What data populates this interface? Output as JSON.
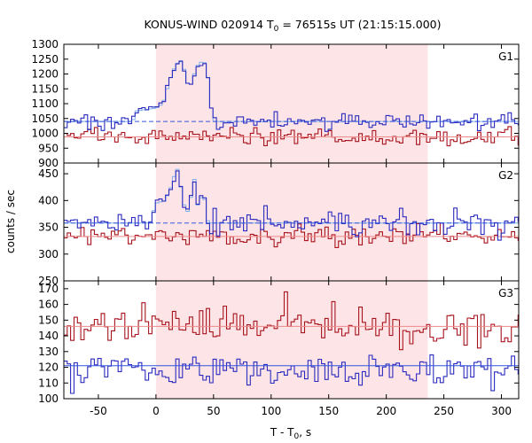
{
  "chart_data": {
    "type": "line",
    "title_main": "KONUS-WIND 020914 T",
    "title_sub": "0",
    "title_rest": " = 76515s UT (21:15:15.000)",
    "xlabel_main": "T - T",
    "xlabel_sub": "0",
    "xlabel_rest": ", s",
    "ylabel": "counts / sec",
    "xlim": [
      -80,
      315
    ],
    "xticks": [
      -50,
      0,
      50,
      100,
      150,
      200,
      250,
      300
    ],
    "highlight_interval": [
      0,
      236
    ],
    "colors": {
      "highlight": "#fde4e6",
      "blue_series": "#2b2bbf",
      "red_series": "#a8141e",
      "burst_curve": "#7fb2ea",
      "blue_background": "#3355dd",
      "red_background": "#ee8a8a"
    },
    "bin_width_s": 2.944,
    "panels": [
      {
        "label": "G1",
        "ylim": [
          900,
          1300
        ],
        "yticks": [
          900,
          950,
          1000,
          1050,
          1100,
          1150,
          1200,
          1250,
          1300
        ],
        "background_levels": {
          "blue": 1040,
          "red": 988
        },
        "blue_baseline": 1040,
        "blue_noise": 14,
        "red_baseline": 988,
        "red_noise": 15,
        "burst_profile": [
          {
            "t": -20,
            "v": 1040
          },
          {
            "t": -18,
            "v": 1075
          },
          {
            "t": 0,
            "v": 1085
          },
          {
            "t": 6,
            "v": 1100
          },
          {
            "t": 12,
            "v": 1180
          },
          {
            "t": 17,
            "v": 1230
          },
          {
            "t": 21,
            "v": 1245
          },
          {
            "t": 24,
            "v": 1225
          },
          {
            "t": 27,
            "v": 1170
          },
          {
            "t": 31,
            "v": 1165
          },
          {
            "t": 35,
            "v": 1225
          },
          {
            "t": 40,
            "v": 1242
          },
          {
            "t": 44,
            "v": 1235
          },
          {
            "t": 47,
            "v": 1110
          },
          {
            "t": 50,
            "v": 1040
          }
        ]
      },
      {
        "label": "G2",
        "ylim": [
          250,
          470
        ],
        "yticks": [
          250,
          300,
          350,
          400,
          450
        ],
        "background_levels": {
          "blue": 358,
          "red": 333
        },
        "blue_baseline": 358,
        "blue_noise": 11,
        "red_baseline": 333,
        "red_noise": 10,
        "burst_profile": [
          {
            "t": -5,
            "v": 360
          },
          {
            "t": 0,
            "v": 395
          },
          {
            "t": 8,
            "v": 400
          },
          {
            "t": 14,
            "v": 430
          },
          {
            "t": 18,
            "v": 465
          },
          {
            "t": 22,
            "v": 420
          },
          {
            "t": 26,
            "v": 375
          },
          {
            "t": 29,
            "v": 385
          },
          {
            "t": 33,
            "v": 445
          },
          {
            "t": 37,
            "v": 380
          },
          {
            "t": 41,
            "v": 425
          },
          {
            "t": 44,
            "v": 365
          },
          {
            "t": 47,
            "v": 358
          }
        ]
      },
      {
        "label": "G3",
        "ylim": [
          100,
          175
        ],
        "yticks": [
          100,
          110,
          120,
          130,
          140,
          150,
          160,
          170
        ],
        "background_levels": {
          "blue": 121,
          "red": 146
        },
        "blue_baseline": 119,
        "blue_noise": 5.5,
        "red_baseline": 146,
        "red_noise": 6,
        "burst_profile": []
      }
    ]
  }
}
